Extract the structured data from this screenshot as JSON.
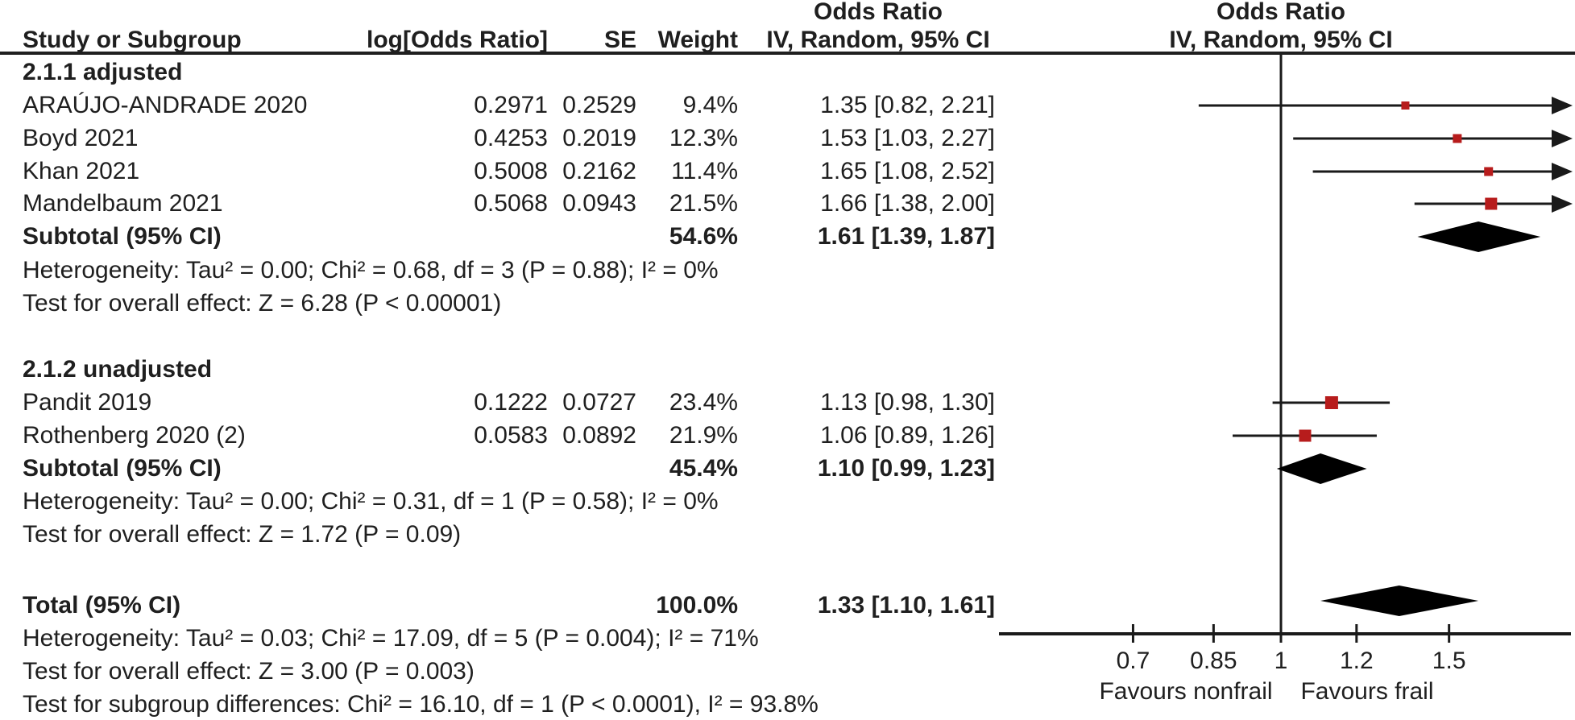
{
  "meta": {
    "background": "#ffffff",
    "text_color": "#1f1f1f",
    "line_color": "#1a1a1a",
    "marker_color": "#b71c1c",
    "diamond_color": "#000000"
  },
  "header": {
    "study_col": "Study or Subgroup",
    "logor_col": "log[Odds Ratio]",
    "se_col": "SE",
    "weight_col": "Weight",
    "or_left_line1": "Odds Ratio",
    "or_left_line2": "IV, Random, 95% CI",
    "or_right_line1": "Odds Ratio",
    "or_right_line2": "IV, Random, 95% CI"
  },
  "groups": [
    {
      "label": "2.1.1 adjusted",
      "studies": [
        {
          "name": "ARAÚJO-ANDRADE 2020",
          "log_or": "0.2971",
          "se": "0.2529",
          "weight": "9.4%",
          "ci_text": "1.35 [0.82, 2.21]"
        },
        {
          "name": "Boyd 2021",
          "log_or": "0.4253",
          "se": "0.2019",
          "weight": "12.3%",
          "ci_text": "1.53 [1.03, 2.27]"
        },
        {
          "name": "Khan 2021",
          "log_or": "0.5008",
          "se": "0.2162",
          "weight": "11.4%",
          "ci_text": "1.65 [1.08, 2.52]"
        },
        {
          "name": "Mandelbaum 2021",
          "log_or": "0.5068",
          "se": "0.0943",
          "weight": "21.5%",
          "ci_text": "1.66 [1.38, 2.00]"
        }
      ],
      "subtotal_label": "Subtotal (95% CI)",
      "subtotal_weight": "54.6%",
      "subtotal_ci": "1.61 [1.39, 1.87]",
      "heterogeneity": "Heterogeneity: Tau² = 0.00; Chi² = 0.68, df = 3 (P = 0.88); I² = 0%",
      "overall_effect": "Test for overall effect: Z = 6.28 (P < 0.00001)"
    },
    {
      "label": "2.1.2 unadjusted",
      "studies": [
        {
          "name": "Pandit 2019",
          "log_or": "0.1222",
          "se": "0.0727",
          "weight": "23.4%",
          "ci_text": "1.13 [0.98, 1.30]"
        },
        {
          "name": "Rothenberg 2020 (2)",
          "log_or": "0.0583",
          "se": "0.0892",
          "weight": "21.9%",
          "ci_text": "1.06 [0.89, 1.26]"
        }
      ],
      "subtotal_label": "Subtotal (95% CI)",
      "subtotal_weight": "45.4%",
      "subtotal_ci": "1.10 [0.99, 1.23]",
      "heterogeneity": "Heterogeneity: Tau² = 0.00; Chi² = 0.31, df = 1 (P = 0.58); I² = 0%",
      "overall_effect": "Test for overall effect: Z = 1.72 (P = 0.09)"
    }
  ],
  "total": {
    "label": "Total (95% CI)",
    "weight": "100.0%",
    "ci_text": "1.33 [1.10, 1.61]",
    "heterogeneity": "Heterogeneity: Tau² = 0.03; Chi² = 17.09, df = 5 (P = 0.004); I² = 71%",
    "overall_effect": "Test for overall effect: Z = 3.00 (P = 0.003)",
    "subgroup_diff": "Test for subgroup differences: Chi² = 16.10, df = 1 (P < 0.0001), I² = 93.8%"
  },
  "chart_data": {
    "type": "forest",
    "x_scale": "log",
    "null_line": 1,
    "x_range": [
      0.5,
      2.01
    ],
    "axis_ticks": [
      "0.7",
      "0.85",
      "1",
      "1.2",
      "1.5"
    ],
    "favours_left": "Favours nonfrail",
    "favours_right": "Favours frail",
    "studies": [
      {
        "name": "ARAÚJO-ANDRADE 2020",
        "or": 1.35,
        "ci_low": 0.82,
        "ci_high": 2.21,
        "weight_pct": 9.4,
        "clipped_high": true
      },
      {
        "name": "Boyd 2021",
        "or": 1.53,
        "ci_low": 1.03,
        "ci_high": 2.27,
        "weight_pct": 12.3,
        "clipped_high": true
      },
      {
        "name": "Khan 2021",
        "or": 1.65,
        "ci_low": 1.08,
        "ci_high": 2.52,
        "weight_pct": 11.4,
        "clipped_high": true
      },
      {
        "name": "Mandelbaum 2021",
        "or": 1.66,
        "ci_low": 1.38,
        "ci_high": 2.0,
        "weight_pct": 21.5,
        "clipped_high": true
      },
      {
        "name": "Pandit 2019",
        "or": 1.13,
        "ci_low": 0.98,
        "ci_high": 1.3,
        "weight_pct": 23.4,
        "clipped_high": false
      },
      {
        "name": "Rothenberg 2020 (2)",
        "or": 1.06,
        "ci_low": 0.89,
        "ci_high": 1.26,
        "weight_pct": 21.9,
        "clipped_high": false
      }
    ],
    "diamonds": [
      {
        "label": "Subtotal 2.1.1 adjusted",
        "or": 1.61,
        "ci_low": 1.39,
        "ci_high": 1.87
      },
      {
        "label": "Subtotal 2.1.2 unadjusted",
        "or": 1.1,
        "ci_low": 0.99,
        "ci_high": 1.23
      },
      {
        "label": "Total",
        "or": 1.33,
        "ci_low": 1.1,
        "ci_high": 1.61
      }
    ]
  }
}
